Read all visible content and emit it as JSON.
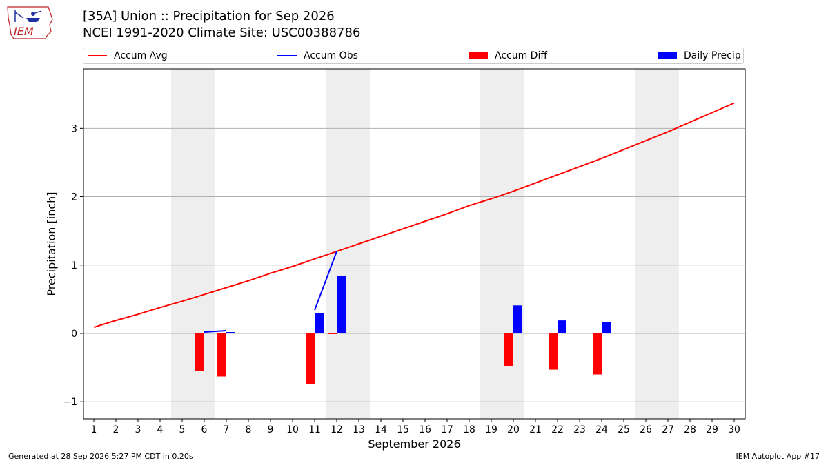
{
  "header": {
    "title_line1": "[35A] Union :: Precipitation for Sep 2026",
    "title_line2": "NCEI 1991-2020 Climate Site: USC00388786",
    "logo_text": "IEM"
  },
  "footer": {
    "generated": "Generated at 28 Sep 2026 5:27 PM CDT in 0.20s",
    "app": "IEM Autoplot App #17"
  },
  "colors": {
    "avg": "#ff0000",
    "obs": "#0000ff",
    "diff": "#ff0000",
    "precip": "#0000ff",
    "weekend_shade": "#eeeeee",
    "grid": "#b0b0b0"
  },
  "chart_data": {
    "type": "bar",
    "xlabel": "September 2026",
    "ylabel": "Precipitation [inch]",
    "ylim": [
      -1.25,
      3.87
    ],
    "yticks": [
      -1,
      0,
      1,
      2,
      3
    ],
    "ytick_labels": [
      "−1",
      "0",
      "1",
      "2",
      "3"
    ],
    "grid": "horizontal",
    "legend_placement": "top",
    "legend": [
      "Accum Avg",
      "Accum Obs",
      "Accum Diff",
      "Daily Precip"
    ],
    "days": [
      1,
      2,
      3,
      4,
      5,
      6,
      7,
      8,
      9,
      10,
      11,
      12,
      13,
      14,
      15,
      16,
      17,
      18,
      19,
      20,
      21,
      22,
      23,
      24,
      25,
      26,
      27,
      28,
      29,
      30
    ],
    "weekend_spans": [
      [
        5,
        6
      ],
      [
        12,
        13
      ],
      [
        19,
        20
      ],
      [
        26,
        27
      ]
    ],
    "series": [
      {
        "name": "Accum Avg",
        "kind": "line",
        "values": [
          0.09,
          0.19,
          0.28,
          0.38,
          0.47,
          0.57,
          0.67,
          0.77,
          0.88,
          0.98,
          1.09,
          1.2,
          1.31,
          1.42,
          1.53,
          1.64,
          1.75,
          1.87,
          1.97,
          2.08,
          2.2,
          2.32,
          2.44,
          2.56,
          2.69,
          2.82,
          2.95,
          3.09,
          3.23,
          3.37
        ]
      },
      {
        "name": "Accum Obs",
        "kind": "line",
        "points": [
          [
            6,
            0.02
          ],
          [
            7,
            0.04
          ],
          [
            11,
            0.34
          ],
          [
            12,
            1.2
          ]
        ]
      },
      {
        "name": "Accum Diff",
        "kind": "bar",
        "values": [
          null,
          null,
          null,
          null,
          null,
          -0.55,
          -0.63,
          null,
          null,
          null,
          -0.74,
          -0.01,
          null,
          null,
          null,
          null,
          null,
          null,
          null,
          -0.48,
          null,
          -0.53,
          null,
          -0.6,
          null,
          null,
          null,
          null,
          null,
          null
        ]
      },
      {
        "name": "Daily Precip",
        "kind": "bar",
        "values": [
          null,
          null,
          null,
          null,
          null,
          null,
          0.02,
          null,
          null,
          null,
          0.3,
          0.84,
          null,
          null,
          null,
          null,
          null,
          null,
          null,
          0.41,
          null,
          0.19,
          null,
          0.17,
          null,
          null,
          null,
          null,
          null,
          null
        ]
      }
    ]
  }
}
